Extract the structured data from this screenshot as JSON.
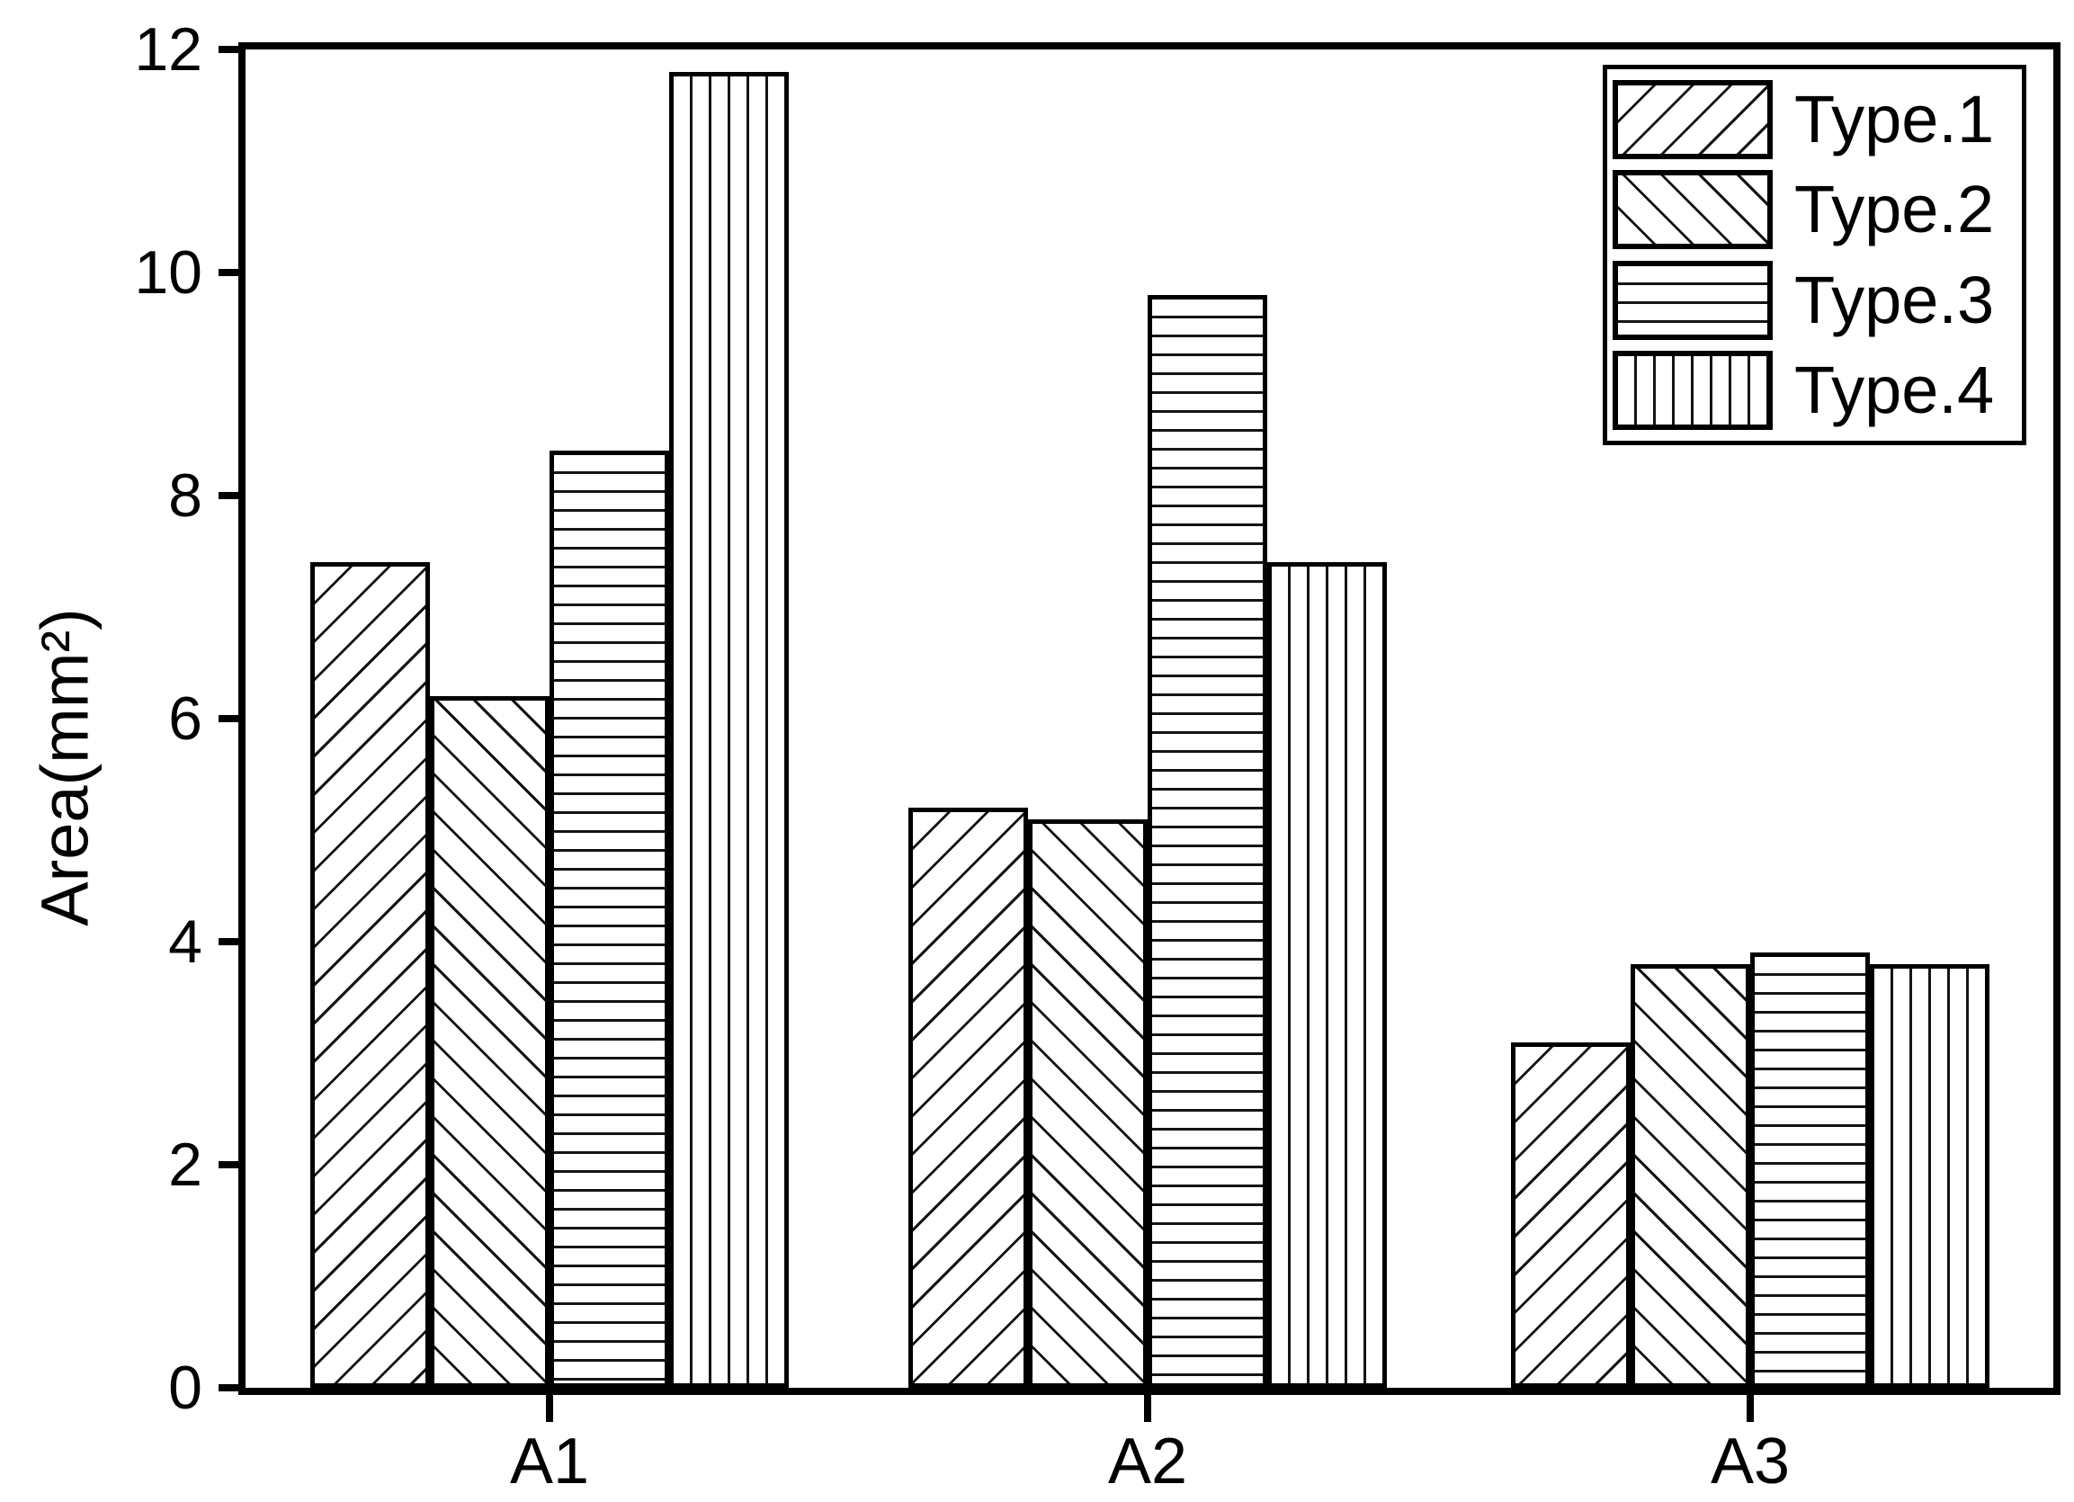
{
  "figure": {
    "background": "#ffffff",
    "ink_color": "#000000",
    "hatch_color": "#141414"
  },
  "y_axis": {
    "label": "Area(mm²)",
    "tick_labels": [
      "0",
      "2",
      "4",
      "6",
      "8",
      "10",
      "12"
    ]
  },
  "x_axis": {
    "tick_labels": [
      "A1",
      "A2",
      "A3"
    ]
  },
  "legend": {
    "entries": [
      {
        "label": "Type.1",
        "pattern": "diagonal-forward"
      },
      {
        "label": "Type.2",
        "pattern": "diagonal-backward"
      },
      {
        "label": "Type.3",
        "pattern": "horizontal-lines"
      },
      {
        "label": "Type.4",
        "pattern": "vertical-lines"
      }
    ]
  },
  "chart_data": {
    "type": "bar",
    "categories": [
      "A1",
      "A2",
      "A3"
    ],
    "series": [
      {
        "name": "Type.1",
        "pattern": "diagonal-forward",
        "values": [
          7.4,
          5.2,
          3.1
        ]
      },
      {
        "name": "Type.2",
        "pattern": "diagonal-backward",
        "values": [
          6.2,
          5.1,
          3.8
        ]
      },
      {
        "name": "Type.3",
        "pattern": "horizontal-lines",
        "values": [
          8.4,
          9.8,
          3.9
        ]
      },
      {
        "name": "Type.4",
        "pattern": "vertical-lines",
        "values": [
          11.8,
          7.4,
          3.8
        ]
      }
    ],
    "title": "",
    "xlabel": "",
    "ylabel": "Area(mm²)",
    "ylim": [
      0,
      12
    ],
    "yticks": [
      0,
      2,
      4,
      6,
      8,
      10,
      12
    ],
    "grid": false,
    "legend_position": "top-right"
  }
}
